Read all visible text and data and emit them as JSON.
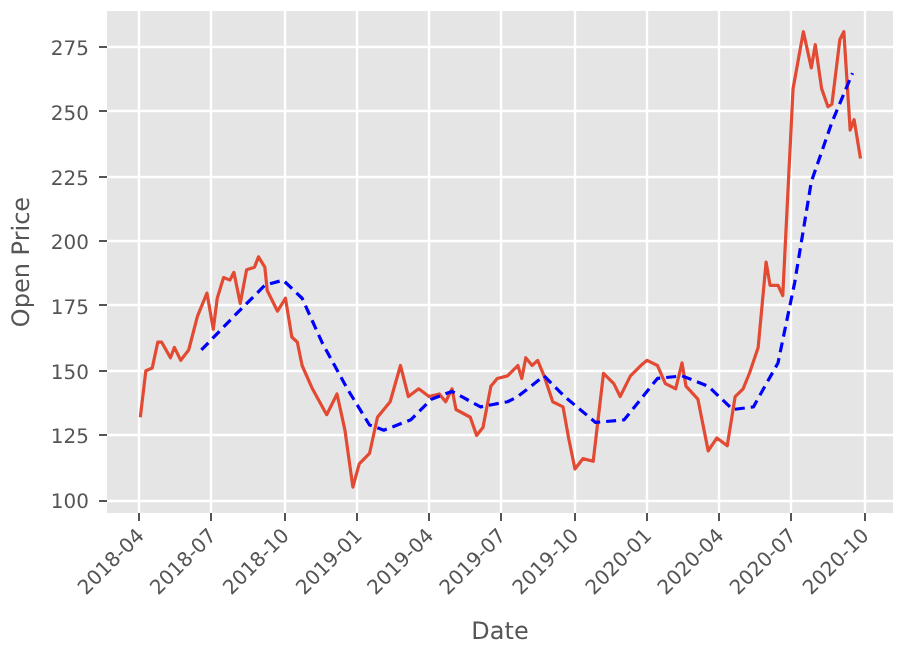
{
  "chart_data": {
    "type": "line",
    "xlabel": "Date",
    "ylabel": "Open Price",
    "grid": true,
    "xlim": [
      "2018-02-19",
      "2020-11-06"
    ],
    "ylim": [
      95,
      289
    ],
    "xticks": [
      {
        "value": "2018-04-01",
        "label": "2018-04"
      },
      {
        "value": "2018-07-01",
        "label": "2018-07"
      },
      {
        "value": "2018-10-01",
        "label": "2018-10"
      },
      {
        "value": "2019-01-01",
        "label": "2019-01"
      },
      {
        "value": "2019-04-01",
        "label": "2019-04"
      },
      {
        "value": "2019-07-01",
        "label": "2019-07"
      },
      {
        "value": "2019-10-01",
        "label": "2019-10"
      },
      {
        "value": "2020-01-01",
        "label": "2020-01"
      },
      {
        "value": "2020-04-01",
        "label": "2020-04"
      },
      {
        "value": "2020-07-01",
        "label": "2020-07"
      },
      {
        "value": "2020-10-01",
        "label": "2020-10"
      }
    ],
    "yticks": [
      100,
      125,
      150,
      175,
      200,
      225,
      250,
      275
    ],
    "series": [
      {
        "color": "#e24a33",
        "line_style": "solid",
        "x": [
          "2018-04-02",
          "2018-04-09",
          "2018-04-17",
          "2018-04-24",
          "2018-04-29",
          "2018-05-10",
          "2018-05-15",
          "2018-05-23",
          "2018-06-02",
          "2018-06-13",
          "2018-06-25",
          "2018-07-03",
          "2018-07-08",
          "2018-07-16",
          "2018-07-24",
          "2018-07-29",
          "2018-08-06",
          "2018-08-14",
          "2018-08-24",
          "2018-08-29",
          "2018-09-06",
          "2018-09-09",
          "2018-09-22",
          "2018-10-02",
          "2018-10-10",
          "2018-10-17",
          "2018-10-23",
          "2018-11-05",
          "2018-11-23",
          "2018-12-06",
          "2018-12-16",
          "2018-12-26",
          "2019-01-03",
          "2019-01-16",
          "2019-01-26",
          "2019-02-11",
          "2019-02-24",
          "2019-03-06",
          "2019-03-19",
          "2019-04-01",
          "2019-04-14",
          "2019-04-22",
          "2019-04-30",
          "2019-05-05",
          "2019-05-23",
          "2019-05-31",
          "2019-06-08",
          "2019-06-18",
          "2019-06-26",
          "2019-07-09",
          "2019-07-22",
          "2019-07-27",
          "2019-08-01",
          "2019-08-09",
          "2019-08-16",
          "2019-08-24",
          "2019-09-04",
          "2019-09-17",
          "2019-09-24",
          "2019-10-02",
          "2019-10-12",
          "2019-10-25",
          "2019-11-07",
          "2019-11-20",
          "2019-11-28",
          "2019-12-11",
          "2019-12-24",
          "2020-01-01",
          "2020-01-14",
          "2020-01-24",
          "2020-02-06",
          "2020-02-14",
          "2020-02-19",
          "2020-03-05",
          "2020-03-18",
          "2020-03-29",
          "2020-04-11",
          "2020-04-21",
          "2020-05-01",
          "2020-05-09",
          "2020-05-20",
          "2020-05-30",
          "2020-06-04",
          "2020-06-14",
          "2020-06-20",
          "2020-07-03",
          "2020-07-16",
          "2020-07-26",
          "2020-07-31",
          "2020-08-08",
          "2020-08-16",
          "2020-08-21",
          "2020-08-31",
          "2020-09-05",
          "2020-09-13",
          "2020-09-18",
          "2020-09-26"
        ],
        "values": [
          132,
          150,
          151,
          161,
          161,
          155,
          159,
          154,
          158,
          171,
          180,
          166,
          178,
          186,
          185,
          188,
          176,
          189,
          190,
          194,
          190,
          181,
          173,
          178,
          163,
          161,
          152,
          143,
          133,
          141,
          127,
          105,
          114,
          118,
          132,
          138,
          152,
          140,
          143,
          140,
          141,
          138,
          143,
          135,
          132,
          125,
          128,
          144,
          147,
          148,
          152,
          147,
          155,
          152,
          154,
          148,
          138,
          136,
          124,
          112,
          116,
          115,
          149,
          145,
          140,
          148,
          152,
          154,
          152,
          145,
          143,
          153,
          144,
          139,
          119,
          124,
          121,
          140,
          143,
          149,
          159,
          192,
          183,
          183,
          179,
          259,
          281,
          267,
          276,
          259,
          252,
          253,
          278,
          281,
          243,
          247,
          232
        ]
      },
      {
        "color": "#0000ff",
        "line_style": "dashed",
        "x": [
          "2018-06-18",
          "2018-07-29",
          "2018-09-06",
          "2018-09-29",
          "2018-10-23",
          "2018-11-17",
          "2018-12-19",
          "2019-01-16",
          "2019-02-03",
          "2019-03-09",
          "2019-04-04",
          "2019-04-30",
          "2019-06-05",
          "2019-07-09",
          "2019-07-22",
          "2019-08-24",
          "2019-09-19",
          "2019-10-28",
          "2019-12-03",
          "2020-01-14",
          "2020-02-14",
          "2020-03-18",
          "2020-04-18",
          "2020-05-14",
          "2020-06-14",
          "2020-07-05",
          "2020-07-26",
          "2020-08-21",
          "2020-09-16"
        ],
        "values": [
          158,
          171,
          183,
          185,
          178,
          161,
          143,
          129,
          127,
          131,
          139,
          142,
          136,
          138,
          140,
          148,
          140,
          130,
          131,
          147,
          148,
          144,
          135,
          136,
          153,
          184,
          223,
          246,
          265
        ]
      }
    ]
  }
}
